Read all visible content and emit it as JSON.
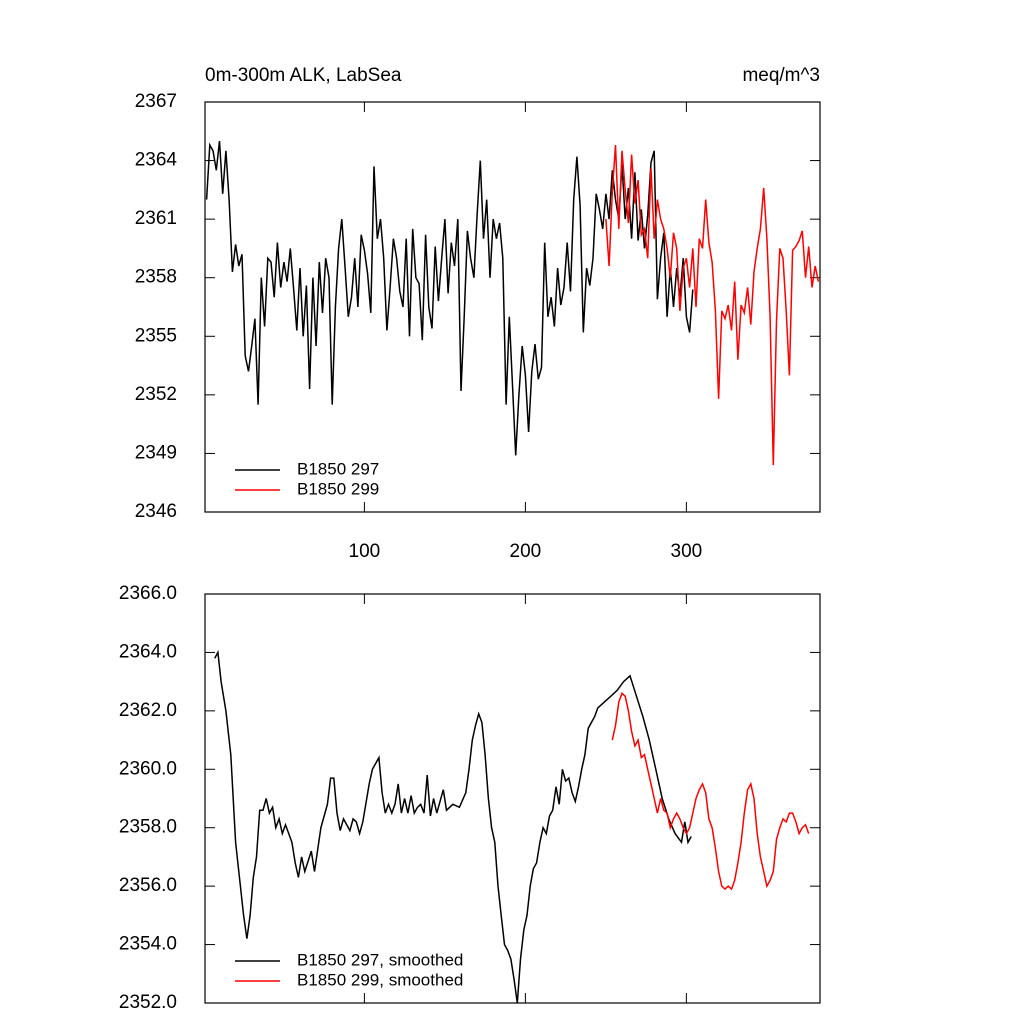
{
  "chart_data": [
    {
      "type": "line",
      "title": "0m-300m ALK, LabSea",
      "units": "meq/m^3",
      "xlim": [
        1,
        383
      ],
      "xticks": [
        100,
        200,
        300
      ],
      "show_xtick_labels": true,
      "ylim": [
        2346,
        2367
      ],
      "yticks": [
        2346,
        2349,
        2352,
        2355,
        2358,
        2361,
        2364,
        2367
      ],
      "legend": "lower left",
      "series": [
        {
          "name": "B1850 297",
          "color": "#000000",
          "x": [
            2,
            4,
            6,
            8,
            10,
            12,
            14,
            16,
            18,
            20,
            22,
            24,
            26,
            28,
            30,
            32,
            34,
            36,
            38,
            40,
            42,
            44,
            46,
            48,
            50,
            52,
            54,
            56,
            58,
            60,
            62,
            64,
            66,
            68,
            70,
            72,
            74,
            76,
            78,
            80,
            82,
            84,
            86,
            88,
            90,
            92,
            94,
            96,
            98,
            100,
            102,
            104,
            106,
            108,
            110,
            112,
            114,
            116,
            118,
            120,
            122,
            124,
            126,
            128,
            130,
            132,
            134,
            136,
            138,
            140,
            142,
            144,
            146,
            148,
            150,
            152,
            154,
            156,
            158,
            160,
            162,
            164,
            166,
            168,
            170,
            172,
            174,
            176,
            178,
            180,
            182,
            184,
            186,
            188,
            190,
            192,
            194,
            196,
            198,
            200,
            202,
            204,
            206,
            208,
            210,
            212,
            214,
            216,
            218,
            220,
            222,
            224,
            226,
            228,
            230,
            232,
            234,
            236,
            238,
            240,
            242,
            244,
            246,
            248,
            250,
            252,
            254,
            256,
            258,
            260,
            262,
            264,
            266,
            268,
            270,
            272,
            274,
            276,
            278,
            280,
            282,
            284,
            286,
            288,
            290,
            292,
            294,
            296,
            298,
            300,
            302,
            304
          ],
          "values": [
            2362,
            2364.8,
            2364.5,
            2363.5,
            2365,
            2362.3,
            2364.5,
            2362,
            2358.3,
            2359.7,
            2358.6,
            2359.2,
            2354,
            2353.2,
            2354.5,
            2355.9,
            2351.5,
            2358,
            2355.5,
            2359,
            2358.8,
            2357,
            2359.8,
            2357.5,
            2358.8,
            2357.8,
            2359.5,
            2357.5,
            2355.3,
            2358.5,
            2355,
            2357.6,
            2352.3,
            2358,
            2354.5,
            2358.8,
            2356.2,
            2359,
            2358,
            2351.5,
            2356.5,
            2359.5,
            2361,
            2358.5,
            2356,
            2357,
            2359,
            2356.5,
            2360.2,
            2359.4,
            2358.2,
            2356.2,
            2363.7,
            2360,
            2361,
            2359,
            2355.3,
            2357.5,
            2360,
            2359,
            2357.3,
            2356.5,
            2360,
            2355,
            2360.5,
            2358,
            2357.7,
            2354.8,
            2360.2,
            2356.5,
            2355.4,
            2359.6,
            2356.8,
            2359,
            2361,
            2357.2,
            2359.8,
            2358.6,
            2361,
            2352.2,
            2356,
            2360.4,
            2359,
            2358,
            2361.2,
            2364,
            2360,
            2362,
            2358,
            2361,
            2360,
            2360.8,
            2359,
            2351.5,
            2356,
            2352.5,
            2348.9,
            2352,
            2354.5,
            2353,
            2350.1,
            2353.2,
            2354.6,
            2352.8,
            2353.4,
            2359.8,
            2356,
            2357,
            2355.5,
            2358.5,
            2356.6,
            2357.5,
            2359.8,
            2357.3,
            2362,
            2364.2,
            2361.7,
            2355.2,
            2358.5,
            2357.6,
            2359,
            2362.3,
            2361.5,
            2360.5,
            2362.3,
            2361,
            2363.5,
            2362,
            2361,
            2363.8,
            2361,
            2362.6,
            2360,
            2363.4,
            2359.9,
            2361.5,
            2359.5,
            2361.2,
            2363.9,
            2364.5,
            2356.9,
            2359,
            2360.3,
            2356,
            2358.5,
            2356.5,
            2358.5,
            2357,
            2359,
            2356,
            2355.2,
            2357.4
          ]
        },
        {
          "name": "B1850 299",
          "color": "#ff0000",
          "x": [
            250,
            252,
            254,
            256,
            258,
            260,
            262,
            264,
            266,
            268,
            270,
            272,
            274,
            276,
            278,
            280,
            282,
            284,
            286,
            288,
            290,
            292,
            294,
            296,
            298,
            300,
            302,
            304,
            306,
            308,
            310,
            312,
            314,
            316,
            318,
            320,
            322,
            324,
            326,
            328,
            330,
            332,
            334,
            336,
            338,
            340,
            342,
            344,
            346,
            348,
            350,
            352,
            354,
            356,
            358,
            360,
            362,
            364,
            366,
            368,
            370,
            372,
            374,
            376,
            378,
            380,
            382
          ],
          "values": [
            2361,
            2358.6,
            2362.4,
            2364.8,
            2360.5,
            2364.5,
            2362.5,
            2360.8,
            2364.3,
            2361.8,
            2363,
            2360.2,
            2360.5,
            2359,
            2363.6,
            2360,
            2362,
            2361,
            2360.5,
            2359.5,
            2358,
            2360.3,
            2359.5,
            2356.3,
            2358.5,
            2359,
            2357.5,
            2359.5,
            2356.5,
            2360,
            2359.5,
            2362,
            2359.8,
            2358.8,
            2356.3,
            2351.8,
            2356.3,
            2355.9,
            2356.6,
            2355.3,
            2357.8,
            2353.8,
            2356.6,
            2356.2,
            2357.5,
            2355.6,
            2358.3,
            2359.5,
            2360.5,
            2362.6,
            2360,
            2356,
            2348.4,
            2355.8,
            2359.5,
            2359,
            2356.3,
            2353,
            2359.4,
            2359.6,
            2359.9,
            2360.4,
            2358,
            2359.6,
            2357.5,
            2358.6,
            2357.8
          ]
        }
      ]
    },
    {
      "type": "line",
      "xlim": [
        1,
        383
      ],
      "xticks": [
        100,
        200,
        300
      ],
      "show_xtick_labels": false,
      "ylim": [
        2352,
        2366
      ],
      "yticks": [
        {
          "value": 2352,
          "label": "2352.0"
        },
        {
          "value": 2354,
          "label": "2354.0"
        },
        {
          "value": 2356,
          "label": "2356.0"
        },
        {
          "value": 2358,
          "label": "2358.0"
        },
        {
          "value": 2360,
          "label": "2360.0"
        },
        {
          "value": 2362,
          "label": "2362.0"
        },
        {
          "value": 2364,
          "label": "2364.0"
        },
        {
          "value": 2366,
          "label": "2366.0"
        }
      ],
      "legend": "lower left",
      "series": [
        {
          "name": "B1850 297, smoothed",
          "color": "#000000",
          "x": [
            7,
            9,
            11,
            14,
            17,
            20,
            23,
            25,
            27,
            29,
            31,
            33,
            35,
            37,
            39,
            41,
            43,
            45,
            47,
            49,
            51,
            55,
            57,
            59,
            61,
            63,
            67,
            69,
            73,
            77,
            79,
            81,
            83,
            85,
            87,
            91,
            93,
            95,
            97,
            99,
            103,
            105,
            107,
            109,
            111,
            113,
            115,
            117,
            119,
            121,
            123,
            125,
            127,
            129,
            131,
            133,
            135,
            137,
            139,
            141,
            143,
            145,
            149,
            151,
            155,
            159,
            163,
            165,
            167,
            169,
            171,
            173,
            175,
            177,
            179,
            181,
            183,
            185,
            187,
            189,
            191,
            193,
            195,
            197,
            199,
            201,
            203,
            205,
            207,
            209,
            211,
            213,
            215,
            217,
            219,
            221,
            223,
            225,
            227,
            229,
            231,
            233,
            235,
            237,
            239,
            241,
            243,
            245,
            249,
            253,
            257,
            261,
            265,
            269,
            273,
            277,
            281,
            285,
            289,
            293,
            297,
            299,
            301,
            303
          ],
          "values": [
            2363.8,
            2364,
            2363,
            2362,
            2360.5,
            2357.5,
            2356,
            2355,
            2354.2,
            2355,
            2356.3,
            2357,
            2358.6,
            2358.6,
            2359,
            2358.5,
            2358.7,
            2358,
            2358.3,
            2357.8,
            2358.1,
            2357.5,
            2356.8,
            2356.3,
            2357,
            2356.5,
            2357.2,
            2356.5,
            2358,
            2358.8,
            2359.7,
            2359.7,
            2358.5,
            2357.9,
            2358.3,
            2357.9,
            2358.3,
            2358.2,
            2357.8,
            2358.2,
            2359.5,
            2360,
            2360.2,
            2360.4,
            2359.2,
            2358.5,
            2358.8,
            2358.5,
            2358.8,
            2359.5,
            2358.5,
            2359,
            2358.5,
            2359.1,
            2358.5,
            2358.7,
            2358.8,
            2358.5,
            2359.8,
            2358.4,
            2359,
            2358.5,
            2359.3,
            2358.6,
            2358.8,
            2358.7,
            2359.2,
            2360,
            2361,
            2361.5,
            2361.9,
            2361.6,
            2360.5,
            2359,
            2358,
            2357.5,
            2356,
            2355,
            2354,
            2353.8,
            2353.5,
            2352.8,
            2352,
            2353.5,
            2354.5,
            2355,
            2356,
            2356.6,
            2356.8,
            2357.5,
            2358,
            2357.8,
            2358.4,
            2358.6,
            2359.4,
            2358.8,
            2360,
            2359.6,
            2359.7,
            2359.2,
            2358.9,
            2359.4,
            2360,
            2360.5,
            2361.4,
            2361.6,
            2361.8,
            2362.1,
            2362.3,
            2362.5,
            2362.7,
            2363,
            2363.2,
            2362.5,
            2361.8,
            2361,
            2360,
            2359,
            2358.3,
            2357.8,
            2357.5,
            2358.2,
            2357.5,
            2357.7
          ]
        },
        {
          "name": "B1850 299, smoothed",
          "color": "#ff0000",
          "x": [
            254,
            256,
            258,
            260,
            262,
            264,
            266,
            268,
            270,
            272,
            274,
            276,
            278,
            280,
            282,
            284,
            286,
            288,
            290,
            292,
            294,
            296,
            298,
            300,
            302,
            304,
            306,
            308,
            310,
            312,
            314,
            316,
            318,
            320,
            322,
            324,
            326,
            328,
            330,
            332,
            334,
            336,
            338,
            340,
            342,
            344,
            346,
            348,
            350,
            352,
            354,
            356,
            358,
            360,
            362,
            364,
            366,
            368,
            370,
            372,
            374,
            376
          ],
          "values": [
            2361,
            2361.5,
            2362.3,
            2362.6,
            2362.5,
            2362,
            2361.3,
            2360.8,
            2361,
            2360.4,
            2360.5,
            2360,
            2359.5,
            2359,
            2358.5,
            2359,
            2358.6,
            2358.5,
            2358,
            2358.3,
            2358.5,
            2358.3,
            2358,
            2357.8,
            2358,
            2358.5,
            2359,
            2359.3,
            2359.5,
            2359.2,
            2358.3,
            2358,
            2357.3,
            2356.5,
            2356,
            2355.9,
            2356,
            2355.9,
            2356.2,
            2356.8,
            2357.5,
            2358.5,
            2359.3,
            2359.5,
            2359,
            2357.8,
            2357,
            2356.5,
            2356,
            2356.2,
            2356.5,
            2357.6,
            2358,
            2358.3,
            2358.2,
            2358.5,
            2358.5,
            2358.2,
            2357.8,
            2358,
            2358.1,
            2357.8
          ]
        }
      ]
    }
  ]
}
